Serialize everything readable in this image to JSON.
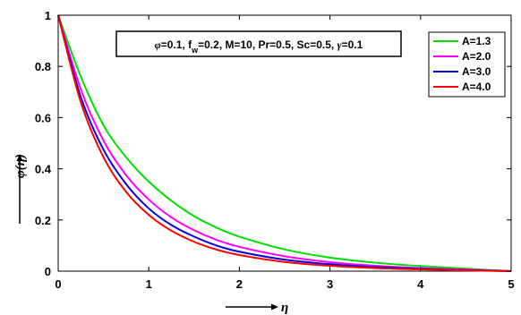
{
  "chart_data": {
    "type": "line",
    "xlabel": "η",
    "ylabel": "φ(η)",
    "xlim": [
      0,
      5
    ],
    "ylim": [
      0,
      1
    ],
    "xticks": [
      "0",
      "1",
      "2",
      "3",
      "4",
      "5"
    ],
    "yticks": [
      "0",
      "0.2",
      "0.4",
      "0.6",
      "0.8",
      "1"
    ],
    "grid": false,
    "legend_position": "top-right",
    "annotation": {
      "parts": [
        {
          "text": "φ",
          "style": "italic"
        },
        {
          "text": "=0.1, f"
        },
        {
          "text": "w",
          "style": "sub"
        },
        {
          "text": "=0.2, M=10, Pr=0.5, Sc=0.5, "
        },
        {
          "text": "γ",
          "style": "italic"
        },
        {
          "text": "=0.1"
        }
      ]
    },
    "x": [
      0,
      0.25,
      0.5,
      0.75,
      1.0,
      1.25,
      1.5,
      1.75,
      2.0,
      2.5,
      3.0,
      3.5,
      4.0,
      4.5,
      5.0
    ],
    "series": [
      {
        "name": "A=1.3",
        "color": "#00e000",
        "values": [
          1.0,
          0.76,
          0.57,
          0.445,
          0.35,
          0.275,
          0.215,
          0.17,
          0.135,
          0.085,
          0.053,
          0.033,
          0.02,
          0.01,
          0.0
        ]
      },
      {
        "name": "A=2.0",
        "color": "#ff00ff",
        "values": [
          1.0,
          0.71,
          0.51,
          0.375,
          0.28,
          0.21,
          0.16,
          0.122,
          0.095,
          0.058,
          0.035,
          0.021,
          0.012,
          0.006,
          0.0
        ]
      },
      {
        "name": "A=3.0",
        "color": "#0000e0",
        "values": [
          1.0,
          0.68,
          0.475,
          0.34,
          0.245,
          0.18,
          0.135,
          0.1,
          0.076,
          0.045,
          0.027,
          0.016,
          0.009,
          0.004,
          0.0
        ]
      },
      {
        "name": "A=4.0",
        "color": "#ff0000",
        "values": [
          1.0,
          0.66,
          0.445,
          0.31,
          0.22,
          0.158,
          0.115,
          0.084,
          0.063,
          0.036,
          0.021,
          0.012,
          0.007,
          0.003,
          0.0
        ]
      }
    ]
  }
}
